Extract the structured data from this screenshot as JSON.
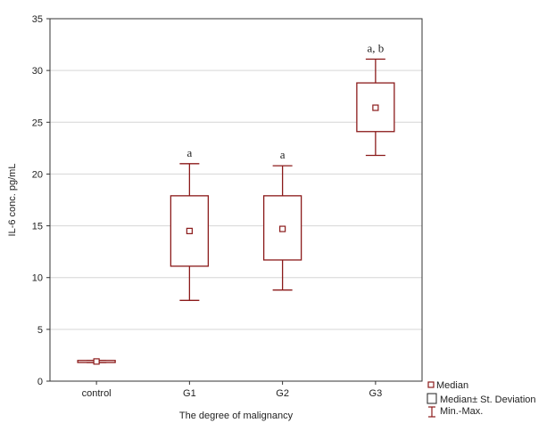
{
  "chart_data": {
    "type": "box",
    "xlabel": "The degree of malignancy",
    "ylabel": "IL-6 conc. pg/mL",
    "ylim": [
      0,
      35
    ],
    "yticks": [
      0,
      5,
      10,
      15,
      20,
      25,
      30,
      35
    ],
    "grid": true,
    "categories": [
      "control",
      "G1",
      "G2",
      "G3"
    ],
    "median": [
      1.9,
      14.5,
      14.7,
      26.4
    ],
    "sd_low": [
      1.8,
      11.1,
      11.7,
      24.1
    ],
    "sd_high": [
      2.0,
      17.9,
      17.9,
      28.8
    ],
    "min": [
      1.8,
      7.8,
      8.8,
      21.8
    ],
    "max": [
      2.0,
      21.0,
      20.8,
      31.1
    ],
    "annotations": [
      "",
      "a",
      "a",
      "a, b"
    ],
    "legend": [
      "Median",
      "Median± St. Deviation",
      "Min.-Max."
    ],
    "legend_position": "bottom-right",
    "color": "#8b1a1a"
  }
}
